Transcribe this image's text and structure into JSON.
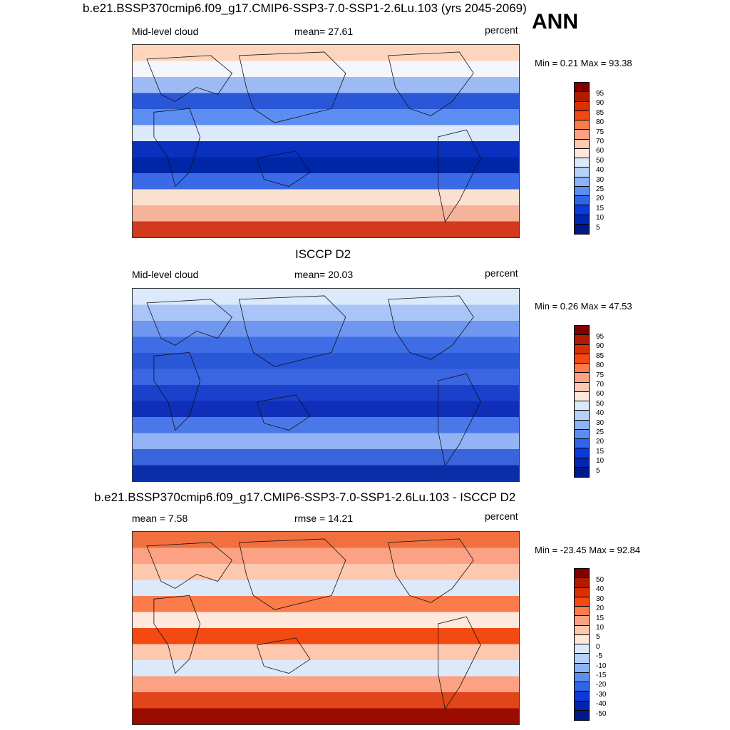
{
  "ann_label": "ANN",
  "panels": [
    {
      "title": "b.e21.BSSP370cmip6.f09_g17.CMIP6-SSP3-7.0-SSP1-2.6Lu.103 (yrs 2045-2069)",
      "left_label": "Mid-level cloud",
      "center_label": "mean=  27.61",
      "units": "percent",
      "minmax": "Min =   0.21 Max =  93.38",
      "colorbar_ticks": [
        "95",
        "90",
        "85",
        "80",
        "75",
        "70",
        "60",
        "50",
        "40",
        "30",
        "25",
        "20",
        "15",
        "10",
        "5"
      ],
      "colorbar_colors": [
        "#800000",
        "#b01a00",
        "#d93000",
        "#f24a12",
        "#fb7b4b",
        "#fca183",
        "#fdc8ad",
        "#fee8db",
        "#dbe9fb",
        "#b5d1fa",
        "#8bb3f6",
        "#5b8ef0",
        "#3164e8",
        "#0c3ad8",
        "#0026b0",
        "#00198a"
      ],
      "map_palette": "abs"
    },
    {
      "title": "ISCCP D2",
      "left_label": "Mid-level cloud",
      "center_label": "mean=  20.03",
      "units": "percent",
      "minmax": "Min =   0.26 Max =  47.53",
      "colorbar_ticks": [
        "95",
        "90",
        "85",
        "80",
        "75",
        "70",
        "60",
        "50",
        "40",
        "30",
        "25",
        "20",
        "15",
        "10",
        "5"
      ],
      "colorbar_colors": [
        "#800000",
        "#b01a00",
        "#d93000",
        "#f24a12",
        "#fb7b4b",
        "#fca183",
        "#fdc8ad",
        "#fee8db",
        "#dbe9fb",
        "#b5d1fa",
        "#8bb3f6",
        "#5b8ef0",
        "#3164e8",
        "#0c3ad8",
        "#0026b0",
        "#00198a"
      ],
      "map_palette": "obs"
    },
    {
      "title": "b.e21.BSSP370cmip6.f09_g17.CMIP6-SSP3-7.0-SSP1-2.6Lu.103 - ISCCP D2",
      "left_label": "mean =   7.58",
      "center_label": "rmse =  14.21",
      "units": "percent",
      "minmax": "Min = -23.45 Max =  92.84",
      "colorbar_ticks": [
        "50",
        "40",
        "30",
        "20",
        "15",
        "10",
        "5",
        "0",
        "-5",
        "-10",
        "-15",
        "-20",
        "-30",
        "-40",
        "-50"
      ],
      "colorbar_colors": [
        "#800000",
        "#b01a00",
        "#d93000",
        "#f24a12",
        "#fb7b4b",
        "#fca183",
        "#fdc8ad",
        "#fee8db",
        "#dbe9fb",
        "#b5d1fa",
        "#8bb3f6",
        "#5b8ef0",
        "#3164e8",
        "#0c3ad8",
        "#0026b0",
        "#00198a"
      ],
      "map_palette": "diff"
    }
  ]
}
